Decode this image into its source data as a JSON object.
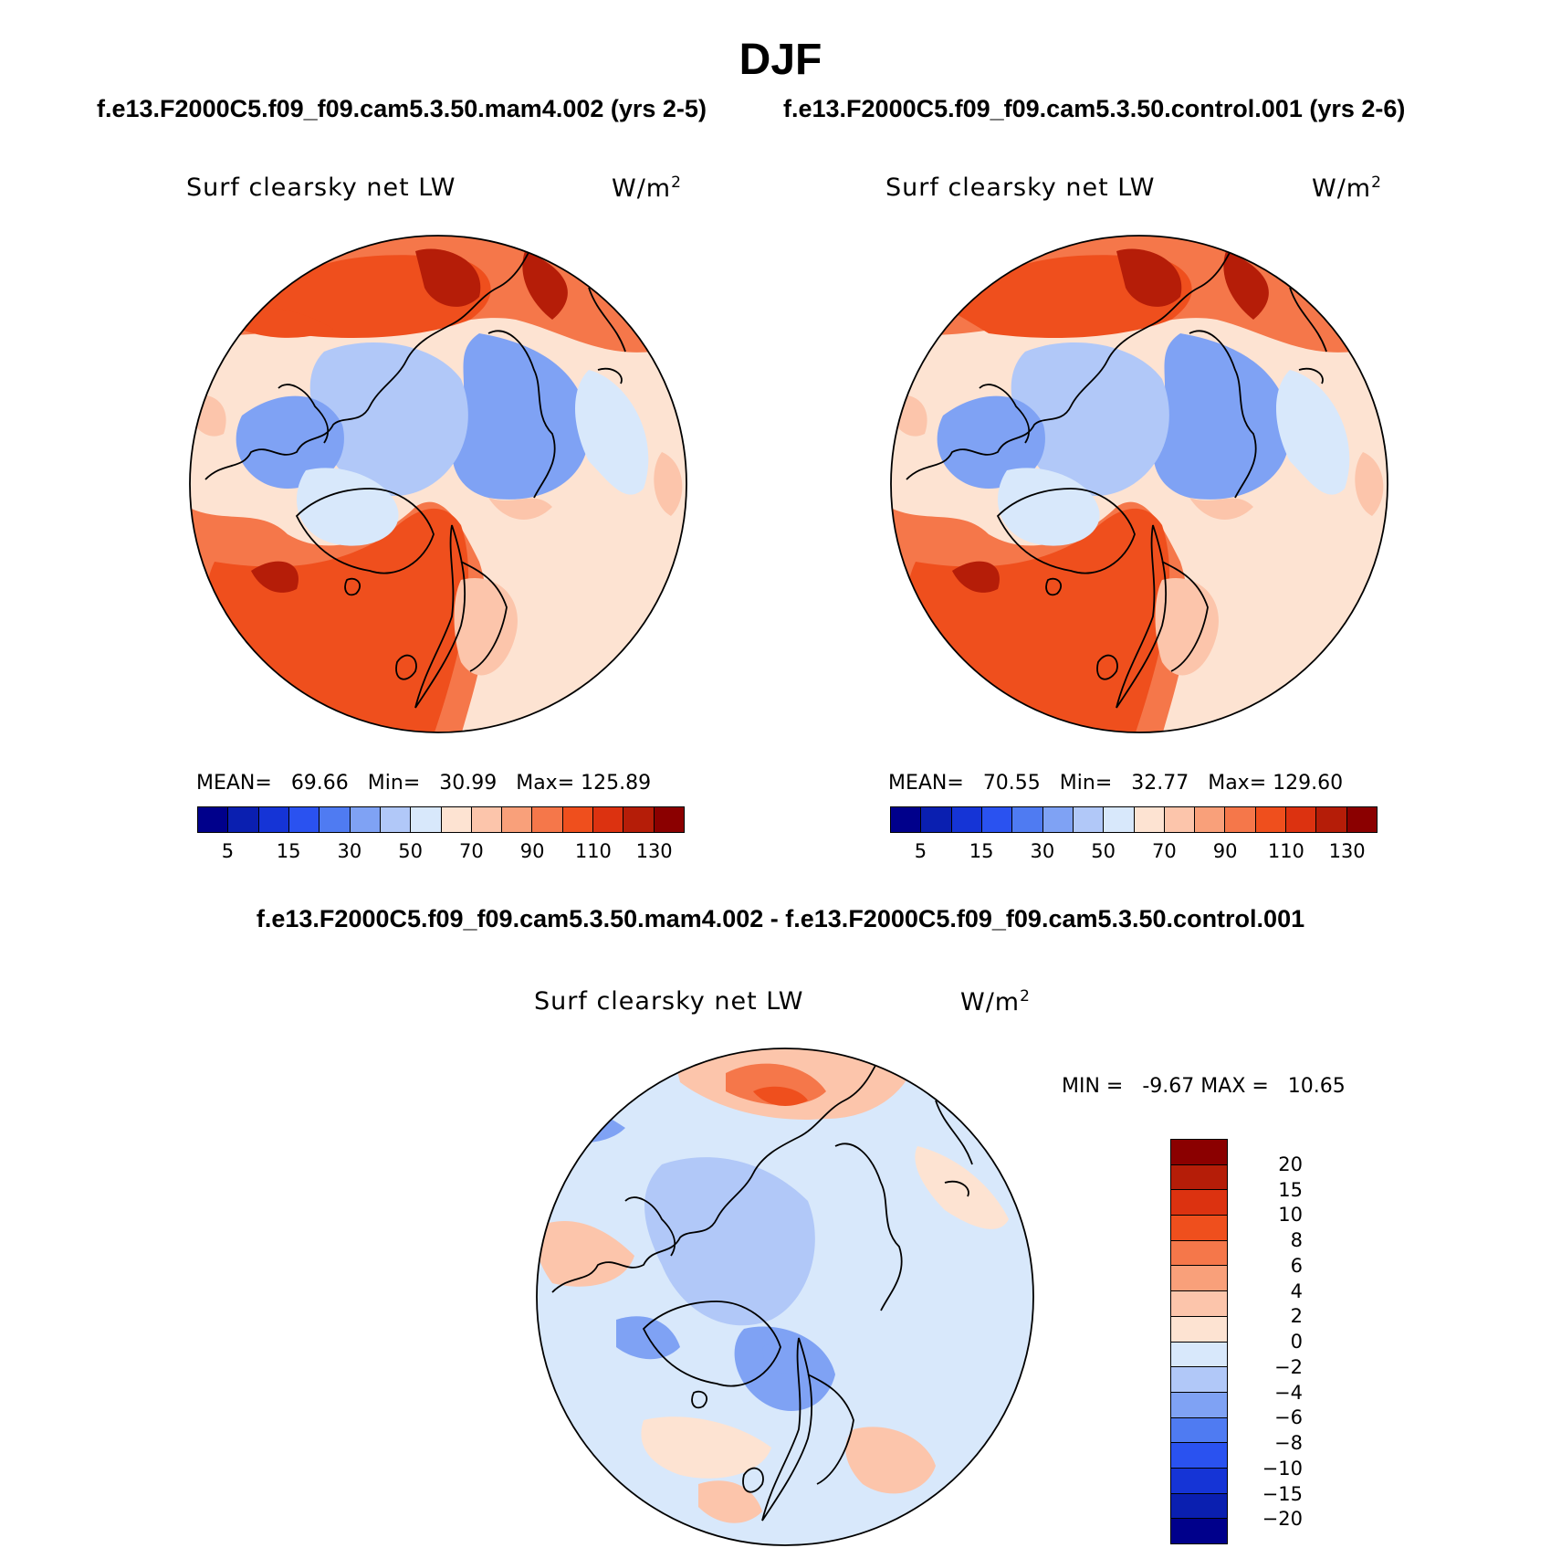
{
  "title": "DJF",
  "case1_label": "f.e13.F2000C5.f09_f09.cam5.3.50.mam4.002 (yrs 2-5)",
  "case2_label": "f.e13.F2000C5.f09_f09.cam5.3.50.control.001 (yrs 2-6)",
  "diff_label": "f.e13.F2000C5.f09_f09.cam5.3.50.mam4.002 - f.e13.F2000C5.f09_f09.cam5.3.50.control.001",
  "variable": "Surf clearsky net LW",
  "units_base": "W/m",
  "units_exp": "2",
  "panel1": {
    "mean_label": "MEAN=",
    "mean": "69.66",
    "min_label": "Min=",
    "min": "30.99",
    "max_label": "Max=",
    "max": "125.89"
  },
  "panel2": {
    "mean_label": "MEAN=",
    "mean": "70.55",
    "min_label": "Min=",
    "min": "32.77",
    "max_label": "Max=",
    "max": "129.60"
  },
  "diff": {
    "min_label": "MIN =",
    "min": "-9.67",
    "max_label": "MAX =",
    "max": "10.65"
  },
  "abs_colorbar": {
    "tick_labels": [
      "5",
      "15",
      "30",
      "50",
      "70",
      "90",
      "110",
      "130"
    ],
    "colors": [
      "#00008b",
      "#0a1fb0",
      "#1534d6",
      "#2a52f0",
      "#4f7bf2",
      "#7fa2f4",
      "#b1c8f8",
      "#d8e8fb",
      "#fde3d2",
      "#fcc5ab",
      "#f9a07a",
      "#f5774a",
      "#ef4f1d",
      "#dc3210",
      "#b51d08",
      "#8b0000"
    ]
  },
  "diff_colorbar": {
    "tick_labels": [
      "20",
      "15",
      "10",
      "8",
      "6",
      "4",
      "2",
      "0",
      "−2",
      "−4",
      "−6",
      "−8",
      "−10",
      "−15",
      "−20"
    ],
    "colors": [
      "#8b0000",
      "#b51d08",
      "#dc3210",
      "#ef4f1d",
      "#f5774a",
      "#f9a07a",
      "#fcc5ab",
      "#fde3d2",
      "#d8e8fb",
      "#b1c8f8",
      "#7fa2f4",
      "#4f7bf2",
      "#2a52f0",
      "#1534d6",
      "#0a1fb0",
      "#00008b"
    ]
  },
  "map_colors": {
    "ocean_warm": "#ef4f1d",
    "ocean_mid": "#f5774a",
    "light_warm": "#fcc5ab",
    "pale_warm": "#fde3d2",
    "arctic": "#b1c8f8",
    "land_cold": "#7fa2f4",
    "pale_cold": "#d8e8fb",
    "deep_red": "#b51d08",
    "coast": "#000000"
  }
}
